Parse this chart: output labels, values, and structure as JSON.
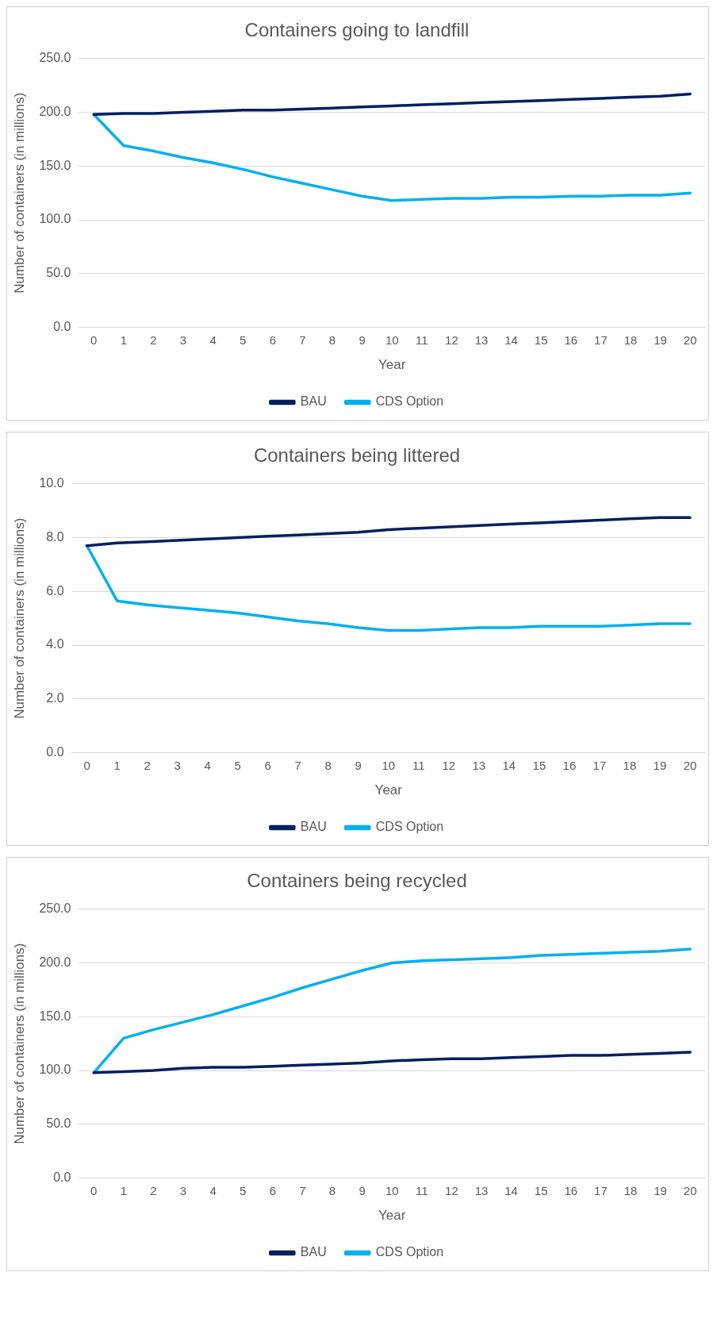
{
  "chart_data": [
    {
      "type": "line",
      "title": "Containers going to landfill",
      "xlabel": "Year",
      "ylabel": "Number of containers (in millions)",
      "x": [
        0,
        1,
        2,
        3,
        4,
        5,
        6,
        7,
        8,
        9,
        10,
        11,
        12,
        13,
        14,
        15,
        16,
        17,
        18,
        19,
        20
      ],
      "xlim": [
        -0.5,
        20.5
      ],
      "xticks": [
        0,
        1,
        2,
        3,
        4,
        5,
        6,
        7,
        8,
        9,
        10,
        11,
        12,
        13,
        14,
        15,
        16,
        17,
        18,
        19,
        20
      ],
      "series": [
        {
          "name": "BAU",
          "color": "#002060",
          "values": [
            198,
            199,
            199,
            200,
            201,
            202,
            202,
            203,
            204,
            205,
            206,
            207,
            208,
            209,
            210,
            211,
            212,
            213,
            214,
            215,
            217
          ]
        },
        {
          "name": "CDS Option",
          "color": "#00b0f0",
          "values": [
            198,
            169,
            164,
            158,
            153,
            147,
            140,
            134,
            128,
            122,
            118,
            119,
            120,
            120,
            121,
            121,
            122,
            122,
            123,
            123,
            125
          ]
        }
      ],
      "ylim": [
        0,
        250
      ],
      "yticks": [
        {
          "value": 0,
          "label": "0.0"
        },
        {
          "value": 50,
          "label": "50.0"
        },
        {
          "value": 100,
          "label": "100.0"
        },
        {
          "value": 150,
          "label": "150.0"
        },
        {
          "value": 200,
          "label": "200.0"
        },
        {
          "value": 250,
          "label": "250.0"
        }
      ],
      "grid": "y",
      "legend": "bottom"
    },
    {
      "type": "line",
      "title": "Containers being littered",
      "xlabel": "Year",
      "ylabel": "Number of containers (in millions)",
      "x": [
        0,
        1,
        2,
        3,
        4,
        5,
        6,
        7,
        8,
        9,
        10,
        11,
        12,
        13,
        14,
        15,
        16,
        17,
        18,
        19,
        20
      ],
      "xlim": [
        -0.5,
        20.5
      ],
      "xticks": [
        0,
        1,
        2,
        3,
        4,
        5,
        6,
        7,
        8,
        9,
        10,
        11,
        12,
        13,
        14,
        15,
        16,
        17,
        18,
        19,
        20
      ],
      "series": [
        {
          "name": "BAU",
          "color": "#002060",
          "values": [
            7.7,
            7.8,
            7.85,
            7.9,
            7.95,
            8.0,
            8.05,
            8.1,
            8.15,
            8.2,
            8.3,
            8.35,
            8.4,
            8.45,
            8.5,
            8.55,
            8.6,
            8.65,
            8.7,
            8.75,
            8.75
          ]
        },
        {
          "name": "CDS Option",
          "color": "#00b0f0",
          "values": [
            7.7,
            5.65,
            5.5,
            5.4,
            5.3,
            5.2,
            5.05,
            4.9,
            4.8,
            4.65,
            4.55,
            4.55,
            4.6,
            4.65,
            4.65,
            4.7,
            4.7,
            4.7,
            4.75,
            4.8,
            4.8
          ]
        }
      ],
      "ylim": [
        0,
        10
      ],
      "yticks": [
        {
          "value": 0,
          "label": "0.0"
        },
        {
          "value": 2,
          "label": "2.0"
        },
        {
          "value": 4,
          "label": "4.0"
        },
        {
          "value": 6,
          "label": "6.0"
        },
        {
          "value": 8,
          "label": "8.0"
        },
        {
          "value": 10,
          "label": "10.0"
        }
      ],
      "grid": "y",
      "legend": "bottom"
    },
    {
      "type": "line",
      "title": "Containers being recycled",
      "xlabel": "Year",
      "ylabel": "Number of containers (in millions)",
      "x": [
        0,
        1,
        2,
        3,
        4,
        5,
        6,
        7,
        8,
        9,
        10,
        11,
        12,
        13,
        14,
        15,
        16,
        17,
        18,
        19,
        20
      ],
      "xlim": [
        -0.5,
        20.5
      ],
      "xticks": [
        0,
        1,
        2,
        3,
        4,
        5,
        6,
        7,
        8,
        9,
        10,
        11,
        12,
        13,
        14,
        15,
        16,
        17,
        18,
        19,
        20
      ],
      "series": [
        {
          "name": "BAU",
          "color": "#002060",
          "values": [
            98,
            99,
            100,
            102,
            103,
            103,
            104,
            105,
            106,
            107,
            109,
            110,
            111,
            111,
            112,
            113,
            114,
            114,
            115,
            116,
            117
          ]
        },
        {
          "name": "CDS Option",
          "color": "#00b0f0",
          "values": [
            98,
            130,
            138,
            145,
            152,
            160,
            168,
            177,
            185,
            193,
            200,
            202,
            203,
            204,
            205,
            207,
            208,
            209,
            210,
            211,
            213
          ]
        }
      ],
      "ylim": [
        0,
        250
      ],
      "yticks": [
        {
          "value": 0,
          "label": "0.0"
        },
        {
          "value": 50,
          "label": "50.0"
        },
        {
          "value": 100,
          "label": "100.0"
        },
        {
          "value": 150,
          "label": "150.0"
        },
        {
          "value": 200,
          "label": "200.0"
        },
        {
          "value": 250,
          "label": "250.0"
        }
      ],
      "grid": "y",
      "legend": "bottom"
    }
  ]
}
